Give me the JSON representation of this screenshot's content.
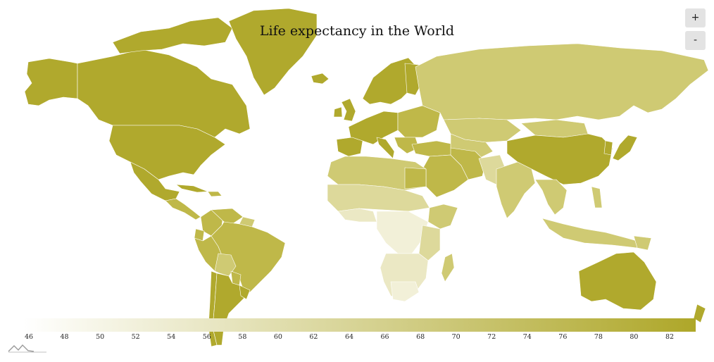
{
  "title": "Life expectancy in the World",
  "zoom": {
    "in_label": "+",
    "out_label": "-"
  },
  "legend": {
    "min": 46,
    "max": 82,
    "ticks": [
      "46",
      "48",
      "50",
      "52",
      "54",
      "56",
      "58",
      "60",
      "62",
      "64",
      "66",
      "68",
      "70",
      "72",
      "74",
      "76",
      "78",
      "80",
      "82"
    ],
    "min_color": "#ffffff",
    "max_color": "#aea729"
  },
  "colors": {
    "high": "#b0a92d",
    "mid_high": "#bfb849",
    "mid": "#cfca73",
    "mid_low": "#ddd99b",
    "low": "#ebe8c4",
    "very_low": "#f2f0d8",
    "borders": "#ffffff",
    "zoom_bg": "#e3e3e3"
  },
  "logo": {
    "name": "amcharts-logo"
  }
}
